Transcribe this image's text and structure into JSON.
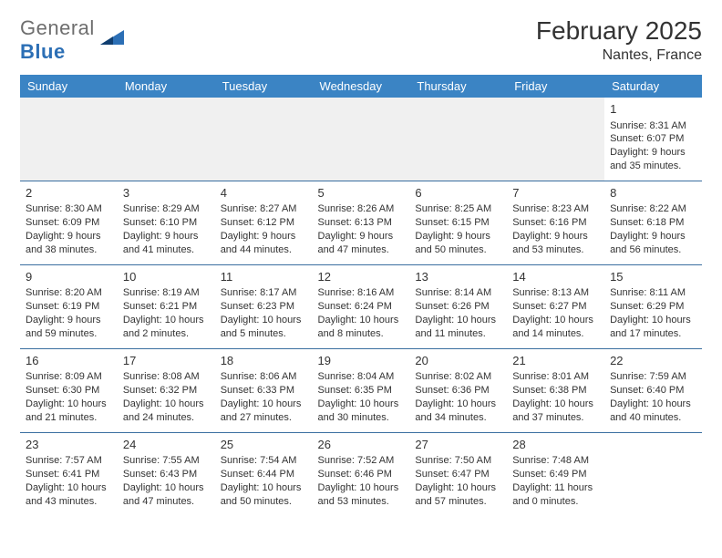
{
  "logo": {
    "text_a": "General",
    "text_b": "Blue"
  },
  "title": "February 2025",
  "location": "Nantes, France",
  "colors": {
    "header_bg": "#3b84c4",
    "header_text": "#ffffff",
    "divider": "#3b6fa0",
    "text": "#333333",
    "logo_gray": "#6e6e6e",
    "logo_blue": "#2c6fb5",
    "empty_bg": "#f0f0f0"
  },
  "day_headers": [
    "Sunday",
    "Monday",
    "Tuesday",
    "Wednesday",
    "Thursday",
    "Friday",
    "Saturday"
  ],
  "weeks": [
    [
      null,
      null,
      null,
      null,
      null,
      null,
      {
        "n": "1",
        "sunrise": "8:31 AM",
        "sunset": "6:07 PM",
        "dl": "9 hours and 35 minutes."
      }
    ],
    [
      {
        "n": "2",
        "sunrise": "8:30 AM",
        "sunset": "6:09 PM",
        "dl": "9 hours and 38 minutes."
      },
      {
        "n": "3",
        "sunrise": "8:29 AM",
        "sunset": "6:10 PM",
        "dl": "9 hours and 41 minutes."
      },
      {
        "n": "4",
        "sunrise": "8:27 AM",
        "sunset": "6:12 PM",
        "dl": "9 hours and 44 minutes."
      },
      {
        "n": "5",
        "sunrise": "8:26 AM",
        "sunset": "6:13 PM",
        "dl": "9 hours and 47 minutes."
      },
      {
        "n": "6",
        "sunrise": "8:25 AM",
        "sunset": "6:15 PM",
        "dl": "9 hours and 50 minutes."
      },
      {
        "n": "7",
        "sunrise": "8:23 AM",
        "sunset": "6:16 PM",
        "dl": "9 hours and 53 minutes."
      },
      {
        "n": "8",
        "sunrise": "8:22 AM",
        "sunset": "6:18 PM",
        "dl": "9 hours and 56 minutes."
      }
    ],
    [
      {
        "n": "9",
        "sunrise": "8:20 AM",
        "sunset": "6:19 PM",
        "dl": "9 hours and 59 minutes."
      },
      {
        "n": "10",
        "sunrise": "8:19 AM",
        "sunset": "6:21 PM",
        "dl": "10 hours and 2 minutes."
      },
      {
        "n": "11",
        "sunrise": "8:17 AM",
        "sunset": "6:23 PM",
        "dl": "10 hours and 5 minutes."
      },
      {
        "n": "12",
        "sunrise": "8:16 AM",
        "sunset": "6:24 PM",
        "dl": "10 hours and 8 minutes."
      },
      {
        "n": "13",
        "sunrise": "8:14 AM",
        "sunset": "6:26 PM",
        "dl": "10 hours and 11 minutes."
      },
      {
        "n": "14",
        "sunrise": "8:13 AM",
        "sunset": "6:27 PM",
        "dl": "10 hours and 14 minutes."
      },
      {
        "n": "15",
        "sunrise": "8:11 AM",
        "sunset": "6:29 PM",
        "dl": "10 hours and 17 minutes."
      }
    ],
    [
      {
        "n": "16",
        "sunrise": "8:09 AM",
        "sunset": "6:30 PM",
        "dl": "10 hours and 21 minutes."
      },
      {
        "n": "17",
        "sunrise": "8:08 AM",
        "sunset": "6:32 PM",
        "dl": "10 hours and 24 minutes."
      },
      {
        "n": "18",
        "sunrise": "8:06 AM",
        "sunset": "6:33 PM",
        "dl": "10 hours and 27 minutes."
      },
      {
        "n": "19",
        "sunrise": "8:04 AM",
        "sunset": "6:35 PM",
        "dl": "10 hours and 30 minutes."
      },
      {
        "n": "20",
        "sunrise": "8:02 AM",
        "sunset": "6:36 PM",
        "dl": "10 hours and 34 minutes."
      },
      {
        "n": "21",
        "sunrise": "8:01 AM",
        "sunset": "6:38 PM",
        "dl": "10 hours and 37 minutes."
      },
      {
        "n": "22",
        "sunrise": "7:59 AM",
        "sunset": "6:40 PM",
        "dl": "10 hours and 40 minutes."
      }
    ],
    [
      {
        "n": "23",
        "sunrise": "7:57 AM",
        "sunset": "6:41 PM",
        "dl": "10 hours and 43 minutes."
      },
      {
        "n": "24",
        "sunrise": "7:55 AM",
        "sunset": "6:43 PM",
        "dl": "10 hours and 47 minutes."
      },
      {
        "n": "25",
        "sunrise": "7:54 AM",
        "sunset": "6:44 PM",
        "dl": "10 hours and 50 minutes."
      },
      {
        "n": "26",
        "sunrise": "7:52 AM",
        "sunset": "6:46 PM",
        "dl": "10 hours and 53 minutes."
      },
      {
        "n": "27",
        "sunrise": "7:50 AM",
        "sunset": "6:47 PM",
        "dl": "10 hours and 57 minutes."
      },
      {
        "n": "28",
        "sunrise": "7:48 AM",
        "sunset": "6:49 PM",
        "dl": "11 hours and 0 minutes."
      },
      null
    ]
  ],
  "labels": {
    "sunrise": "Sunrise:",
    "sunset": "Sunset:",
    "daylight": "Daylight:"
  }
}
